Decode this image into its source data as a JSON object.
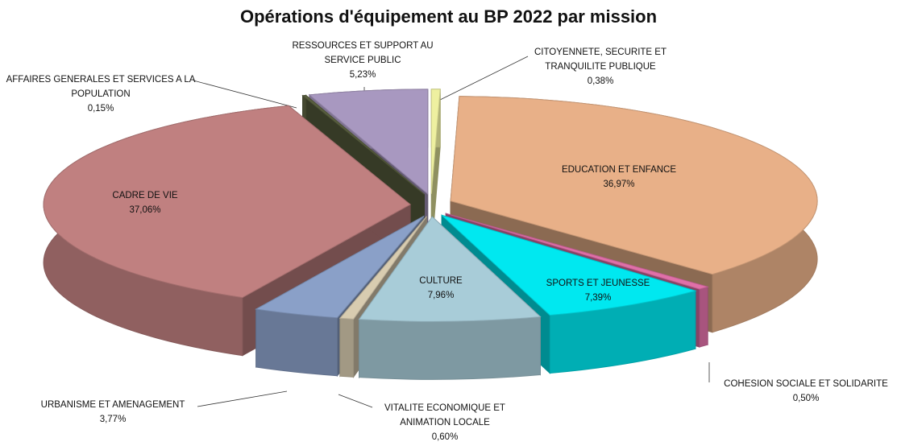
{
  "chart_data": {
    "type": "pie",
    "title": "Opérations d'équipement au BP 2022 par mission",
    "categories": [
      "CITOYENNETE, SECURITE ET TRANQUILITE PUBLIQUE",
      "EDUCATION ET ENFANCE",
      "COHESION SOCIALE ET SOLIDARITE",
      "SPORTS ET JEUNESSE",
      "CULTURE",
      "VITALITE ECONOMIQUE ET ANIMATION LOCALE",
      "URBANISME ET AMENAGEMENT",
      "CADRE DE VIE",
      "AFFAIRES GENERALES ET SERVICES A LA POPULATION",
      "RESSOURCES ET SUPPORT AU SERVICE PUBLIC"
    ],
    "values": [
      0.38,
      36.97,
      0.5,
      7.39,
      7.96,
      0.6,
      3.77,
      37.06,
      0.15,
      5.23
    ],
    "value_labels": [
      "0,38%",
      "36,97%",
      "0,50%",
      "7,39%",
      "7,96%",
      "0,60%",
      "3,77%",
      "37,06%",
      "0,15%",
      "5,23%"
    ],
    "colors": [
      "#eef0a0",
      "#e8b088",
      "#e070a8",
      "#00e8f0",
      "#a8ccd8",
      "#d8ccb0",
      "#8aa0c8",
      "#c08080",
      "#5a6040",
      "#a898c0"
    ]
  }
}
